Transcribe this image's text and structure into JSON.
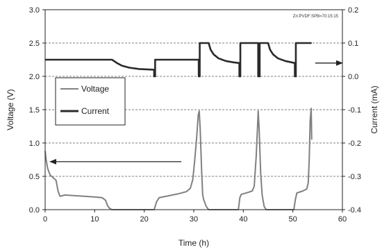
{
  "chart_data": {
    "type": "line",
    "annotation": "Zn:PVDF:SPB=70:15:15",
    "xlabel": "Time (h)",
    "ylabel_left": "Voltage (V)",
    "ylabel_right": "Current (mA)",
    "xlim": [
      0,
      60
    ],
    "ylim_left": [
      0,
      3.0
    ],
    "ylim_right": [
      -0.4,
      0.2
    ],
    "x_ticks": [
      "0",
      "10",
      "20",
      "30",
      "40",
      "50",
      "60"
    ],
    "y_ticks_left": [
      "0.0",
      "0.5",
      "1.0",
      "1.5",
      "2.0",
      "2.5",
      "3.0"
    ],
    "y_ticks_right": [
      "-0.4",
      "-0.3",
      "-0.2",
      "-0.1",
      "0.0",
      "0.1",
      "0.2"
    ],
    "grid": "horizontal dashed",
    "legend_position": "upper-left",
    "colors": {
      "voltage": "#808080",
      "current": "#2a2a2a"
    },
    "series": [
      {
        "name": "Voltage",
        "axis": "left",
        "points": [
          [
            0.0,
            0.88
          ],
          [
            0.2,
            0.75
          ],
          [
            0.5,
            0.62
          ],
          [
            1.0,
            0.52
          ],
          [
            1.6,
            0.48
          ],
          [
            2.2,
            0.44
          ],
          [
            2.6,
            0.28
          ],
          [
            3.0,
            0.2
          ],
          [
            4.0,
            0.22
          ],
          [
            6.0,
            0.21
          ],
          [
            8.0,
            0.2
          ],
          [
            10.0,
            0.19
          ],
          [
            11.5,
            0.18
          ],
          [
            12.2,
            0.14
          ],
          [
            12.6,
            0.06
          ],
          [
            13.0,
            0.02
          ],
          [
            13.5,
            0.0
          ],
          [
            22.0,
            0.0
          ],
          [
            22.5,
            0.12
          ],
          [
            23.0,
            0.18
          ],
          [
            25.0,
            0.21
          ],
          [
            27.0,
            0.24
          ],
          [
            28.5,
            0.27
          ],
          [
            29.3,
            0.32
          ],
          [
            29.8,
            0.45
          ],
          [
            30.2,
            0.75
          ],
          [
            30.6,
            1.1
          ],
          [
            30.9,
            1.42
          ],
          [
            31.1,
            1.48
          ],
          [
            31.3,
            1.2
          ],
          [
            31.6,
            0.55
          ],
          [
            31.8,
            0.22
          ],
          [
            32.0,
            0.15
          ],
          [
            32.5,
            0.05
          ],
          [
            33.0,
            0.0
          ],
          [
            39.0,
            0.0
          ],
          [
            39.3,
            0.18
          ],
          [
            39.6,
            0.23
          ],
          [
            41.0,
            0.26
          ],
          [
            41.8,
            0.28
          ],
          [
            42.2,
            0.35
          ],
          [
            42.6,
            0.8
          ],
          [
            42.9,
            1.3
          ],
          [
            43.0,
            1.48
          ],
          [
            43.2,
            1.2
          ],
          [
            43.5,
            0.55
          ],
          [
            43.8,
            0.22
          ],
          [
            44.2,
            0.05
          ],
          [
            44.6,
            0.0
          ],
          [
            50.2,
            0.0
          ],
          [
            50.5,
            0.15
          ],
          [
            50.8,
            0.25
          ],
          [
            52.0,
            0.28
          ],
          [
            52.8,
            0.31
          ],
          [
            53.1,
            0.4
          ],
          [
            53.3,
            0.75
          ],
          [
            53.5,
            1.35
          ],
          [
            53.7,
            1.52
          ],
          [
            53.8,
            1.05
          ]
        ]
      },
      {
        "name": "Current",
        "axis": "right",
        "points": [
          [
            0.0,
            0.05
          ],
          [
            13.5,
            0.05
          ],
          [
            14.5,
            0.04
          ],
          [
            15.5,
            0.032
          ],
          [
            17.0,
            0.026
          ],
          [
            19.0,
            0.022
          ],
          [
            22.0,
            0.02
          ],
          [
            22.0,
            0.0
          ],
          [
            22.2,
            0.0
          ],
          [
            22.2,
            0.05
          ],
          [
            31.0,
            0.05
          ],
          [
            31.0,
            0.0
          ],
          [
            31.2,
            0.0
          ],
          [
            31.2,
            0.1
          ],
          [
            33.0,
            0.1
          ],
          [
            33.4,
            0.08
          ],
          [
            34.0,
            0.066
          ],
          [
            35.0,
            0.054
          ],
          [
            36.5,
            0.046
          ],
          [
            38.0,
            0.042
          ],
          [
            39.2,
            0.04
          ],
          [
            39.2,
            0.0
          ],
          [
            39.4,
            0.0
          ],
          [
            39.4,
            0.1
          ],
          [
            43.0,
            0.1
          ],
          [
            43.0,
            0.0
          ],
          [
            43.3,
            0.0
          ],
          [
            43.3,
            0.1
          ],
          [
            45.0,
            0.1
          ],
          [
            45.4,
            0.08
          ],
          [
            46.0,
            0.066
          ],
          [
            47.0,
            0.054
          ],
          [
            48.5,
            0.046
          ],
          [
            50.4,
            0.04
          ],
          [
            50.4,
            0.0
          ],
          [
            50.6,
            0.0
          ],
          [
            50.6,
            0.1
          ],
          [
            53.8,
            0.1
          ]
        ]
      }
    ],
    "arrows": [
      {
        "target": "right-axis",
        "x_from": 54.5,
        "x_to": 60.0,
        "y_right": 0.04
      },
      {
        "target": "left-axis",
        "x_from": 27.5,
        "x_to": 1.0,
        "y_left": 0.72
      }
    ]
  }
}
